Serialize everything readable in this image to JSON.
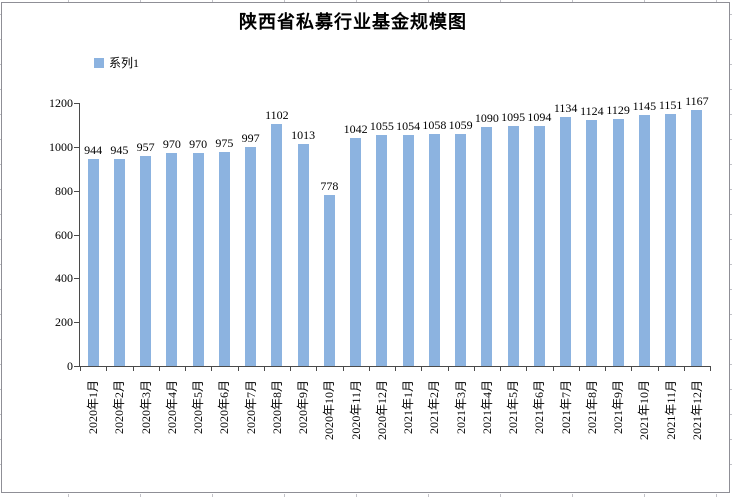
{
  "chart_data": {
    "type": "bar",
    "title": "陕西省私募行业基金规模图",
    "legend": {
      "position": "top-left",
      "entries": [
        {
          "label": "系列1",
          "color": "#8cb3e0"
        }
      ]
    },
    "categories": [
      "2020年1月",
      "2020年2月",
      "2020年3月",
      "2020年4月",
      "2020年5月",
      "2020年6月",
      "2020年7月",
      "2020年8月",
      "2020年9月",
      "2020年10月",
      "2020年11月",
      "2020年12月",
      "2021年1月",
      "2021年2月",
      "2021年3月",
      "2021年4月",
      "2021年5月",
      "2021年6月",
      "2021年7月",
      "2021年8月",
      "2021年9月",
      "2021年10月",
      "2021年11月",
      "2021年12月"
    ],
    "series": [
      {
        "name": "系列1",
        "values": [
          944,
          945,
          957,
          970,
          970,
          975,
          997,
          1102,
          1013,
          778,
          1042,
          1055,
          1054,
          1058,
          1059,
          1090,
          1095,
          1094,
          1134,
          1124,
          1129,
          1145,
          1151,
          1167
        ]
      }
    ],
    "data_labels": true,
    "xlabel": "",
    "ylabel": "",
    "ylim": [
      0,
      1200
    ],
    "y_ticks": [
      0,
      200,
      400,
      600,
      800,
      1000,
      1200
    ],
    "grid": false,
    "bar_color": "#8cb3e0",
    "axis_color": "#4a4a4a",
    "x_label_rotation_deg": -90
  }
}
